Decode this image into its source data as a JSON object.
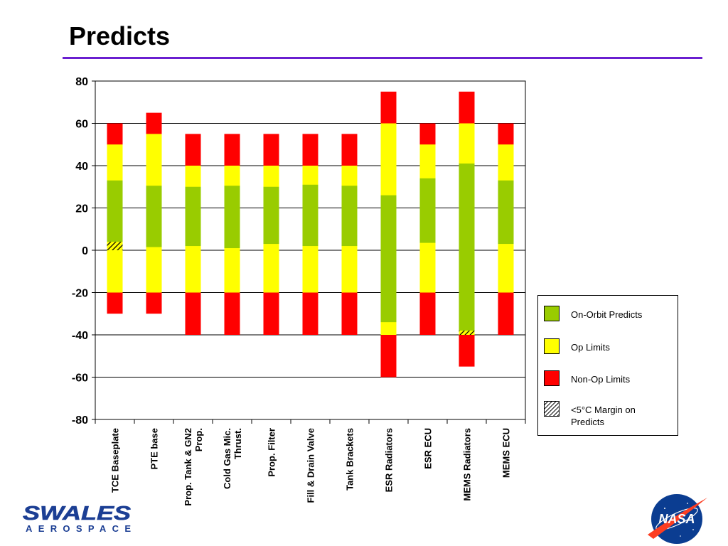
{
  "slide": {
    "title": "Predicts"
  },
  "chart_data": {
    "type": "bar",
    "subtype": "floating-stacked-range",
    "title": "",
    "xlabel": "",
    "ylabel": "",
    "ylim": [
      -80,
      80
    ],
    "yticks": [
      80,
      60,
      40,
      20,
      0,
      -20,
      -40,
      -60,
      -80
    ],
    "grid": true,
    "legend_position": "right",
    "categories": [
      "TCE Baseplate",
      "PTE base",
      "Prop. Tank & GN2 Prop.",
      "Cold Gas Mic. Thrust.",
      "Prop. Filter",
      "Fill & Drain Valve",
      "Tank Brackets",
      "ESR Radiators",
      "ESR ECU",
      "MEMS Radiators",
      "MEMS ECU"
    ],
    "category_lines": [
      [
        "TCE Baseplate"
      ],
      [
        "PTE base"
      ],
      [
        "Prop. Tank & GN2",
        "Prop."
      ],
      [
        "Cold Gas Mic.",
        "Thrust."
      ],
      [
        "Prop. Filter"
      ],
      [
        "Fill & Drain Valve"
      ],
      [
        "Tank Brackets"
      ],
      [
        "ESR Radiators"
      ],
      [
        "ESR ECU"
      ],
      [
        "MEMS Radiators"
      ],
      [
        "MEMS ECU"
      ]
    ],
    "series": [
      {
        "name": "On-Orbit Predicts",
        "color": "#99cc00",
        "ranges": [
          [
            4,
            33
          ],
          [
            1.5,
            30.5
          ],
          [
            2,
            30
          ],
          [
            1,
            30.5
          ],
          [
            3,
            30
          ],
          [
            2,
            31
          ],
          [
            2,
            30.5
          ],
          [
            -34,
            26
          ],
          [
            3.5,
            34
          ],
          [
            -38,
            41
          ],
          [
            3,
            33
          ]
        ]
      },
      {
        "name": "Op Limits",
        "color": "#ffff00",
        "ranges": [
          [
            -20,
            50
          ],
          [
            -20,
            55
          ],
          [
            -20,
            40
          ],
          [
            -20,
            40
          ],
          [
            -20,
            40
          ],
          [
            -20,
            40
          ],
          [
            -20,
            40
          ],
          [
            -40,
            60
          ],
          [
            -20,
            50
          ],
          [
            -40,
            60
          ],
          [
            -20,
            50
          ]
        ]
      },
      {
        "name": "Non-Op Limits",
        "color": "#ff0000",
        "ranges": [
          [
            -30,
            60
          ],
          [
            -30,
            65
          ],
          [
            -40,
            55
          ],
          [
            -40,
            55
          ],
          [
            -40,
            55
          ],
          [
            -40,
            55
          ],
          [
            -40,
            55
          ],
          [
            -60,
            75
          ],
          [
            -40,
            60
          ],
          [
            -55,
            75
          ],
          [
            -40,
            60
          ]
        ]
      },
      {
        "name": "<5°C Margin on Predicts",
        "pattern": "hatched",
        "ranges": [
          [
            0,
            4
          ],
          null,
          null,
          null,
          null,
          null,
          null,
          null,
          null,
          [
            -40,
            -38
          ],
          null
        ]
      }
    ]
  },
  "legend": {
    "items": [
      {
        "label": "On-Orbit Predicts",
        "color": "#99cc00"
      },
      {
        "label": "Op Limits",
        "color": "#ffff00"
      },
      {
        "label": "Non-Op Limits",
        "color": "#ff0000"
      },
      {
        "label": "<5°C Margin on Predicts",
        "color": "hatched"
      }
    ]
  },
  "logos": {
    "swales": {
      "wordmark": "SWALES",
      "subtitle": "AEROSPACE"
    },
    "nasa": {
      "wordmark": "NASA"
    }
  }
}
